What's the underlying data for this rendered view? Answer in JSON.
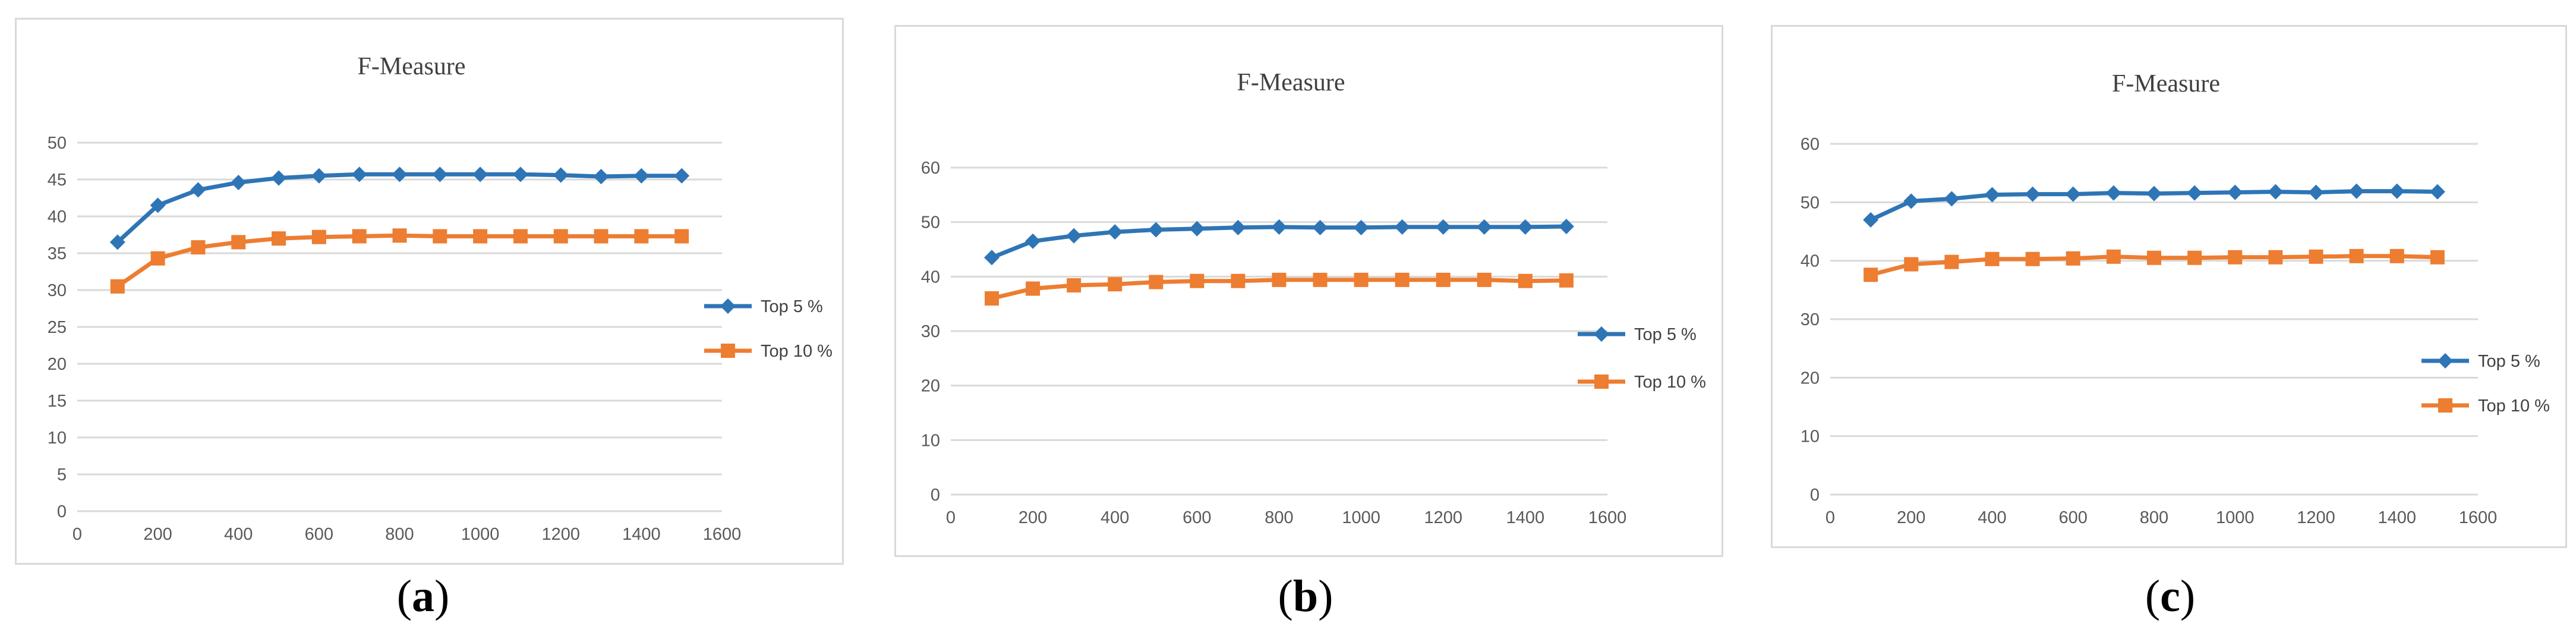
{
  "chart_data": [
    {
      "type": "line",
      "title": "F-Measure",
      "caption_letter": "a",
      "x": [
        100,
        200,
        300,
        400,
        500,
        600,
        700,
        800,
        900,
        1000,
        1100,
        1200,
        1300,
        1400,
        1500
      ],
      "xlim": [
        0,
        1600
      ],
      "xticks": [
        0,
        200,
        400,
        600,
        800,
        1000,
        1200,
        1400,
        1600
      ],
      "ylim": [
        0,
        50
      ],
      "yticks": [
        0,
        5,
        10,
        15,
        20,
        25,
        30,
        35,
        40,
        45,
        50
      ],
      "grid": true,
      "legend_position": "right",
      "series": [
        {
          "name": "Top 5 %",
          "color": "#2e75b6",
          "marker": "diamond",
          "values": [
            36.5,
            41.5,
            43.6,
            44.6,
            45.2,
            45.5,
            45.7,
            45.7,
            45.7,
            45.7,
            45.7,
            45.6,
            45.4,
            45.5,
            45.5
          ]
        },
        {
          "name": "Top 10 %",
          "color": "#ed7d31",
          "marker": "square",
          "values": [
            30.5,
            34.3,
            35.8,
            36.5,
            37.0,
            37.2,
            37.3,
            37.4,
            37.3,
            37.3,
            37.3,
            37.3,
            37.3,
            37.3,
            37.3
          ]
        }
      ]
    },
    {
      "type": "line",
      "title": "F-Measure",
      "caption_letter": "b",
      "x": [
        100,
        200,
        300,
        400,
        500,
        600,
        700,
        800,
        900,
        1000,
        1100,
        1200,
        1300,
        1400,
        1500
      ],
      "xlim": [
        0,
        1600
      ],
      "xticks": [
        0,
        200,
        400,
        600,
        800,
        1000,
        1200,
        1400,
        1600
      ],
      "ylim": [
        0,
        60
      ],
      "yticks": [
        0,
        10,
        20,
        30,
        40,
        50,
        60
      ],
      "grid": true,
      "legend_position": "right",
      "series": [
        {
          "name": "Top 5 %",
          "color": "#2e75b6",
          "marker": "diamond",
          "values": [
            43.5,
            46.5,
            47.5,
            48.2,
            48.6,
            48.8,
            49.0,
            49.1,
            49.0,
            49.0,
            49.1,
            49.1,
            49.1,
            49.1,
            49.2
          ]
        },
        {
          "name": "Top 10 %",
          "color": "#ed7d31",
          "marker": "square",
          "values": [
            36.0,
            37.8,
            38.4,
            38.6,
            39.0,
            39.2,
            39.2,
            39.4,
            39.4,
            39.4,
            39.4,
            39.4,
            39.4,
            39.2,
            39.3
          ]
        }
      ]
    },
    {
      "type": "line",
      "title": "F-Measure",
      "caption_letter": "c",
      "x": [
        100,
        200,
        300,
        400,
        500,
        600,
        700,
        800,
        900,
        1000,
        1100,
        1200,
        1300,
        1400,
        1500
      ],
      "xlim": [
        0,
        1600
      ],
      "xticks": [
        0,
        200,
        400,
        600,
        800,
        1000,
        1200,
        1400,
        1600
      ],
      "ylim": [
        0,
        60
      ],
      "yticks": [
        0,
        10,
        20,
        30,
        40,
        50,
        60
      ],
      "grid": true,
      "legend_position": "right",
      "series": [
        {
          "name": "Top 5 %",
          "color": "#2e75b6",
          "marker": "diamond",
          "values": [
            47.0,
            50.2,
            50.6,
            51.3,
            51.4,
            51.4,
            51.6,
            51.5,
            51.6,
            51.7,
            51.8,
            51.7,
            51.9,
            51.9,
            51.8
          ]
        },
        {
          "name": "Top 10 %",
          "color": "#ed7d31",
          "marker": "square",
          "values": [
            37.6,
            39.4,
            39.8,
            40.3,
            40.3,
            40.4,
            40.7,
            40.5,
            40.5,
            40.6,
            40.6,
            40.7,
            40.8,
            40.8,
            40.6
          ]
        }
      ]
    }
  ]
}
